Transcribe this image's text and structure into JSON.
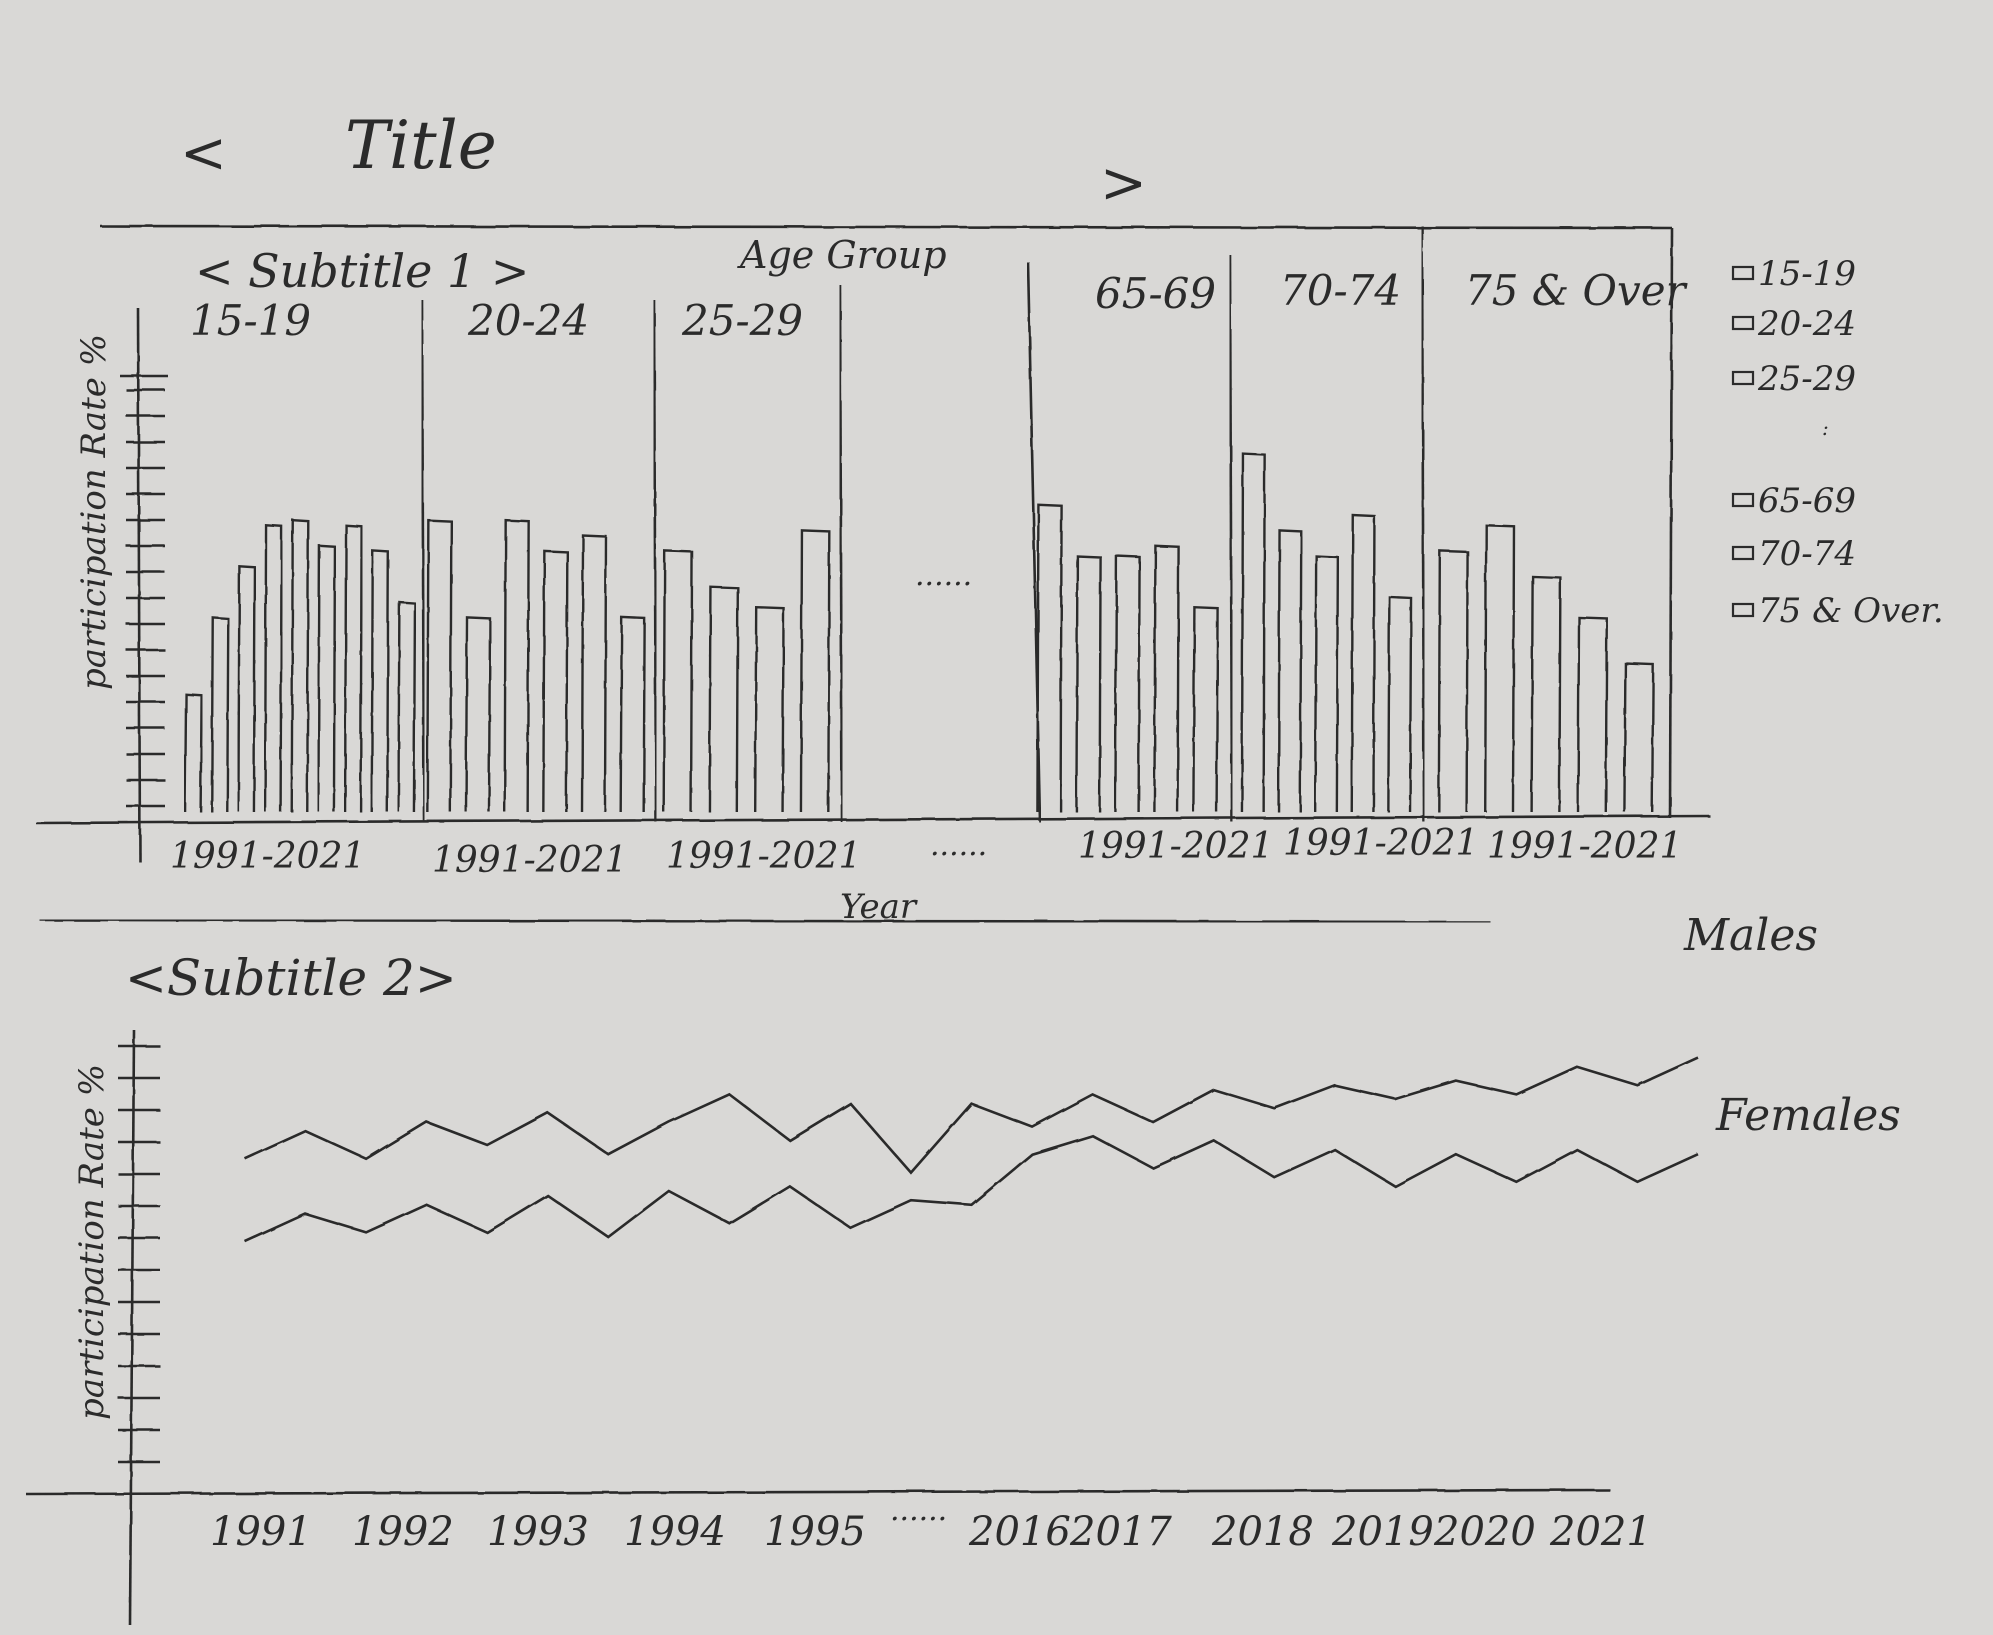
{
  "header": {
    "prev_label": "<",
    "title": "Title",
    "next_label": ">"
  },
  "panel1": {
    "subtitle": "< Subtitle 1 >",
    "group_header": "Age Group",
    "ylabel": "participation Rate %",
    "xlabel": "Year",
    "ellipsis": "......",
    "groups": [
      {
        "label": "15-19",
        "x_range": "1991-2021"
      },
      {
        "label": "20-24",
        "x_range": "1991-2021"
      },
      {
        "label": "25-29",
        "x_range": "1991-2021"
      },
      {
        "label": "65-69",
        "x_range": "1991-2021"
      },
      {
        "label": "70-74",
        "x_range": "1991-2021"
      },
      {
        "label": "75 & Over",
        "x_range": "1991-2021"
      }
    ],
    "legend": [
      "15-19",
      "20-24",
      "25-29",
      ":",
      "65-69",
      "70-74",
      "75 & Over."
    ]
  },
  "panel2": {
    "subtitle": "<Subtitle 2>",
    "ylabel": "participation Rate %",
    "x_ticks": [
      "1991",
      "1992",
      "1993",
      "1994",
      "1995",
      "......",
      "2016",
      "2017",
      "2018",
      "2019",
      "2020",
      "2021"
    ],
    "series_labels": [
      "Males",
      "Females"
    ]
  },
  "chart_data": [
    {
      "type": "bar",
      "title": "Title",
      "subtitle": "< Subtitle 1 >",
      "xlabel": "Year",
      "ylabel": "participation Rate %",
      "facet_header": "Age Group",
      "legend": "right",
      "facets": [
        {
          "group": "15-19",
          "x_range": "1991-2021",
          "values": [
            23,
            38,
            48,
            56,
            57,
            52,
            56,
            51,
            41
          ]
        },
        {
          "group": "20-24",
          "x_range": "1991-2021",
          "values": [
            57,
            38,
            57,
            51,
            54,
            38
          ]
        },
        {
          "group": "25-29",
          "x_range": "1991-2021",
          "values": [
            51,
            44,
            40,
            55
          ]
        },
        {
          "group": "65-69",
          "x_range": "1991-2021",
          "values": [
            60,
            50,
            50,
            52,
            40
          ]
        },
        {
          "group": "70-74",
          "x_range": "1991-2021",
          "values": [
            70,
            55,
            50,
            58,
            42
          ]
        },
        {
          "group": "75 & Over",
          "x_range": "1991-2021",
          "values": [
            51,
            56,
            46,
            38,
            29
          ]
        }
      ]
    },
    {
      "type": "line",
      "subtitle": "<Subtitle 2>",
      "xlabel": "",
      "ylabel": "participation Rate %",
      "x_ticks": [
        "1991",
        "1992",
        "1993",
        "1994",
        "1995",
        "......",
        "2016",
        "2017",
        "2018",
        "2019",
        "2020",
        "2021"
      ],
      "series": [
        {
          "name": "Males",
          "values": [
            72,
            78,
            72,
            80,
            75,
            82,
            73,
            80,
            86,
            76,
            84,
            69,
            84,
            79,
            86,
            80,
            87,
            83,
            88,
            85,
            89,
            86,
            92,
            88,
            94
          ]
        },
        {
          "name": "Females",
          "values": [
            54,
            60,
            56,
            62,
            56,
            64,
            55,
            65,
            58,
            66,
            57,
            63,
            62,
            73,
            77,
            70,
            76,
            68,
            74,
            66,
            73,
            67,
            74,
            67,
            73
          ]
        }
      ]
    }
  ],
  "colors": {
    "ink": "#2b2b2b",
    "paper": "#d9d8d6"
  }
}
